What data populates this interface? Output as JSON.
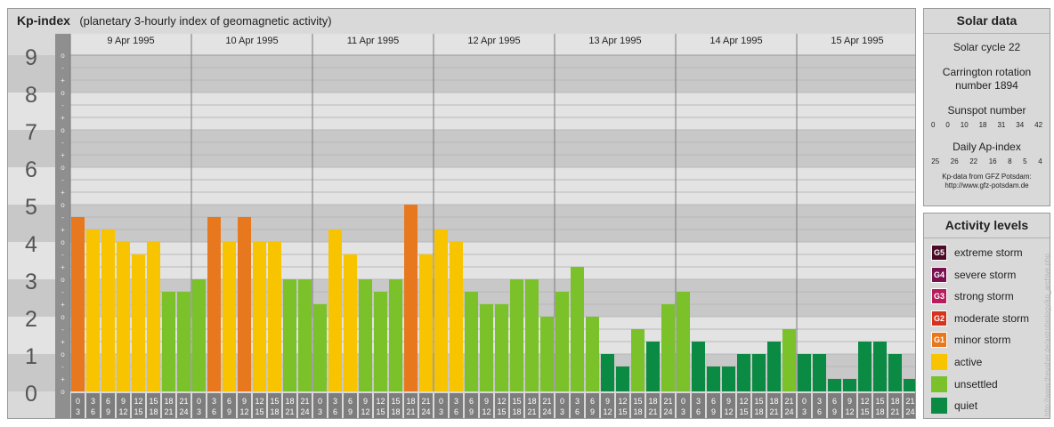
{
  "header": {
    "title": "Kp-index",
    "subtitle": "(planetary 3-hourly index of geomagnetic activity)"
  },
  "chart_data": {
    "type": "bar",
    "ylim": [
      0,
      9
    ],
    "y_major_ticks": [
      "0",
      "1",
      "2",
      "3",
      "4",
      "5",
      "6",
      "7",
      "8",
      "9"
    ],
    "y_minor_ticks": [
      "+",
      "o",
      "-"
    ],
    "days": [
      "9 Apr 1995",
      "10 Apr 1995",
      "11 Apr 1995",
      "12 Apr 1995",
      "13 Apr 1995",
      "14 Apr 1995",
      "15 Apr 1995"
    ],
    "intervals": [
      [
        "0",
        "3"
      ],
      [
        "3",
        "6"
      ],
      [
        "6",
        "9"
      ],
      [
        "9",
        "12"
      ],
      [
        "12",
        "15"
      ],
      [
        "15",
        "18"
      ],
      [
        "18",
        "21"
      ],
      [
        "21",
        "24"
      ]
    ],
    "values": [
      [
        4.667,
        4.333,
        4.333,
        4.0,
        3.667,
        4.0,
        2.667,
        2.667
      ],
      [
        3.0,
        4.667,
        4.0,
        4.667,
        4.0,
        4.0,
        3.0,
        3.0
      ],
      [
        2.333,
        4.333,
        3.667,
        3.0,
        2.667,
        3.0,
        5.0,
        3.667
      ],
      [
        4.333,
        4.0,
        2.667,
        2.333,
        2.333,
        3.0,
        3.0,
        2.0
      ],
      [
        2.667,
        3.333,
        2.0,
        1.0,
        0.667,
        1.667,
        1.333,
        2.333
      ],
      [
        2.667,
        1.333,
        0.667,
        0.667,
        1.0,
        1.0,
        1.333,
        1.667
      ],
      [
        1.0,
        1.0,
        0.333,
        0.333,
        1.333,
        1.333,
        1.0,
        0.333
      ]
    ],
    "level_colors": {
      "minor_storm": "#e8781e",
      "active": "#f8c400",
      "unsettled": "#7ac12a",
      "quiet": "#0a8a42"
    },
    "background_colors": {
      "band_dark": "#c8c8c8",
      "band_light": "#e3e3e3",
      "axis_column": "#8f8f8f",
      "time_cell": "#7d7d7d"
    }
  },
  "solar": {
    "title": "Solar data",
    "solar_cycle": "Solar cycle 22",
    "carrington_line1": "Carrington rotation",
    "carrington_line2": "number 1894",
    "sunspot_label": "Sunspot number",
    "sunspot_values": [
      "0",
      "0",
      "10",
      "18",
      "31",
      "34",
      "42"
    ],
    "ap_label": "Daily Ap-index",
    "ap_values": [
      "25",
      "26",
      "22",
      "16",
      "8",
      "5",
      "4"
    ],
    "credit_line1": "Kp-data from GFZ Potsdam:",
    "credit_line2": "http://www.gfz-potsdam.de"
  },
  "legend": {
    "title": "Activity levels",
    "items": [
      {
        "code": "G5",
        "label": "extreme storm",
        "color": "#4b0a26"
      },
      {
        "code": "G4",
        "label": "severe storm",
        "color": "#7a1050"
      },
      {
        "code": "G3",
        "label": "strong storm",
        "color": "#b71c5e"
      },
      {
        "code": "G2",
        "label": "moderate storm",
        "color": "#d8321c"
      },
      {
        "code": "G1",
        "label": "minor storm",
        "color": "#e8781e"
      },
      {
        "code": "",
        "label": "active",
        "color": "#f8c400"
      },
      {
        "code": "",
        "label": "unsettled",
        "color": "#7ac12a"
      },
      {
        "code": "",
        "label": "quiet",
        "color": "#0a8a42"
      }
    ]
  },
  "watermark": "http://www.theusher.de/astrobiology/kp_archive.php"
}
